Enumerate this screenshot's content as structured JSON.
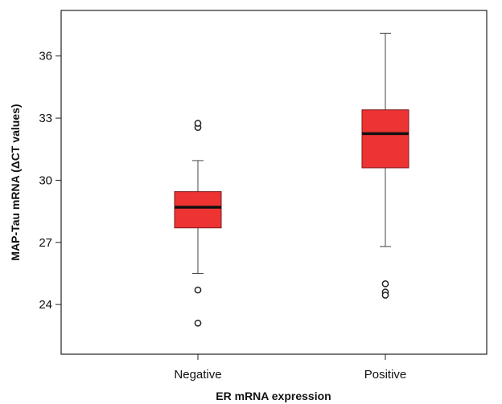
{
  "chart_data": {
    "type": "boxplot",
    "title": "",
    "xlabel": "ER mRNA expression",
    "ylabel": "MAP-Tau  mRNA  (ΔCT values)",
    "categories": [
      "Negative",
      "Positive"
    ],
    "ylim": [
      21.6,
      38.2
    ],
    "yticks": [
      24,
      27,
      30,
      33,
      36
    ],
    "grid": false,
    "legend": "none",
    "box_color": "#ee3333",
    "median_color": "#111111",
    "boxes": [
      {
        "category": "Negative",
        "whisker_low": 25.5,
        "q1": 27.7,
        "median": 28.7,
        "q3": 29.45,
        "whisker_high": 30.95,
        "outliers": [
          32.55,
          32.75,
          24.7,
          23.1
        ]
      },
      {
        "category": "Positive",
        "whisker_low": 26.8,
        "q1": 30.6,
        "median": 32.25,
        "q3": 33.4,
        "whisker_high": 37.1,
        "outliers": [
          25.0,
          24.6,
          24.45
        ]
      }
    ]
  }
}
